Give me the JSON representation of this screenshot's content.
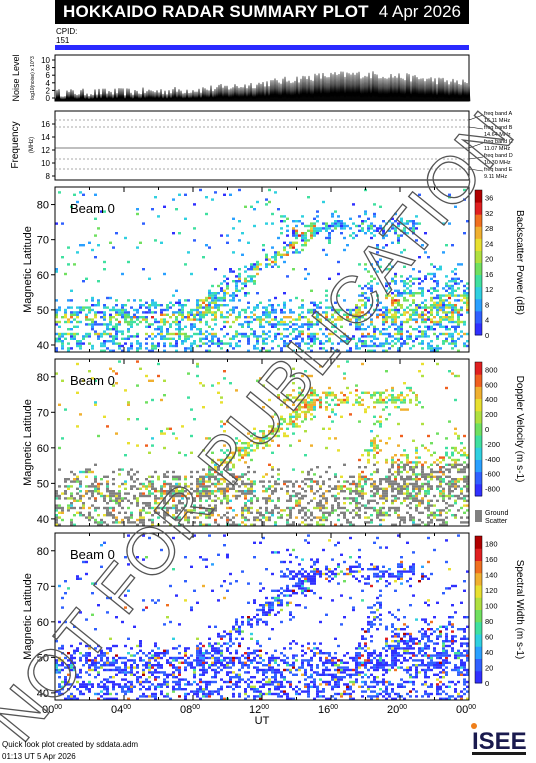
{
  "header": {
    "title": "HOKKAIDO RADAR SUMMARY PLOT",
    "date": "4 Apr 2026"
  },
  "cpid": {
    "label": "CPID:",
    "value": "151"
  },
  "noise": {
    "ylabel": "Noise Level",
    "unit": "log10(noise) x 10^3",
    "ticks": [
      "10",
      "8",
      "6",
      "4",
      "2",
      "0"
    ]
  },
  "frequency": {
    "ylabel": "Frequency",
    "unit": "(MHz)",
    "ticks": [
      "16",
      "14",
      "12",
      "10",
      "8"
    ],
    "bands": [
      {
        "name": "freq band A",
        "value": "16.11 MHz"
      },
      {
        "name": "freq band B",
        "value": "14.64 MHz"
      },
      {
        "name": "freq band C",
        "value": "11.07 MHz"
      },
      {
        "name": "freq band D",
        "value": "10.30 MHz"
      },
      {
        "name": "freq band E",
        "value": "9.11 MHz"
      }
    ]
  },
  "watermark": "NOT FOR PUBLICATION",
  "chart_data": [
    {
      "type": "heatmap",
      "beam": "Beam  0",
      "ylabel": "Magnetic Latitude",
      "yticks": [
        80,
        70,
        60,
        50,
        40
      ],
      "ylim": [
        38,
        85
      ],
      "colorbar": {
        "label": "Backscatter Power (dB)",
        "ticks": [
          36,
          32,
          28,
          24,
          20,
          16,
          12,
          8,
          4,
          0
        ],
        "range": [
          0,
          38
        ]
      },
      "bands": [
        {
          "x": [
            0,
            3
          ],
          "y": [
            40,
            52
          ]
        },
        {
          "x": [
            2,
            11
          ],
          "y": [
            44,
            55
          ]
        },
        {
          "x": [
            7,
            10.5
          ],
          "y": [
            55,
            65
          ]
        },
        {
          "x": [
            11,
            16
          ],
          "y": [
            46,
            62
          ]
        },
        {
          "x": [
            13,
            17
          ],
          "y": [
            63,
            72
          ]
        },
        {
          "x": [
            14,
            20
          ],
          "y": [
            72,
            78
          ]
        },
        {
          "x": [
            17.5,
            18.2
          ],
          "y": [
            46,
            60
          ]
        },
        {
          "x": [
            20,
            24
          ],
          "y": [
            45,
            60
          ]
        }
      ]
    },
    {
      "type": "heatmap",
      "beam": "Beam  0",
      "ylabel": "Magnetic Latitude",
      "yticks": [
        80,
        70,
        60,
        50,
        40
      ],
      "ylim": [
        38,
        85
      ],
      "colorbar": {
        "label": "Doppler Velocity (m s-1)",
        "ticks": [
          800,
          600,
          400,
          200,
          0,
          -200,
          -400,
          -600,
          -800
        ],
        "range": [
          -900,
          900
        ]
      },
      "ground_scatter_label": [
        "Ground",
        "Scatter"
      ]
    },
    {
      "type": "heatmap",
      "beam": "Beam  0",
      "ylabel": "Magnetic Latitude",
      "yticks": [
        80,
        70,
        60,
        50,
        40
      ],
      "ylim": [
        38,
        85
      ],
      "colorbar": {
        "label": "Spectral Width (m s-1)",
        "ticks": [
          180,
          160,
          140,
          120,
          100,
          80,
          60,
          40,
          20,
          0
        ],
        "range": [
          0,
          190
        ]
      }
    }
  ],
  "xaxis": {
    "label": "UT",
    "ticks": [
      "00",
      "04",
      "08",
      "12",
      "16",
      "20",
      "00"
    ],
    "sup": "00",
    "range": [
      0,
      24
    ]
  },
  "footer": {
    "line1": "Quick look plot created by sddata.adm",
    "line2": "01:13 UT  5 Apr 2026"
  },
  "logo": {
    "text": "ISEE"
  },
  "colors": {
    "accent": "#2a2aff",
    "ground": "#808080"
  }
}
